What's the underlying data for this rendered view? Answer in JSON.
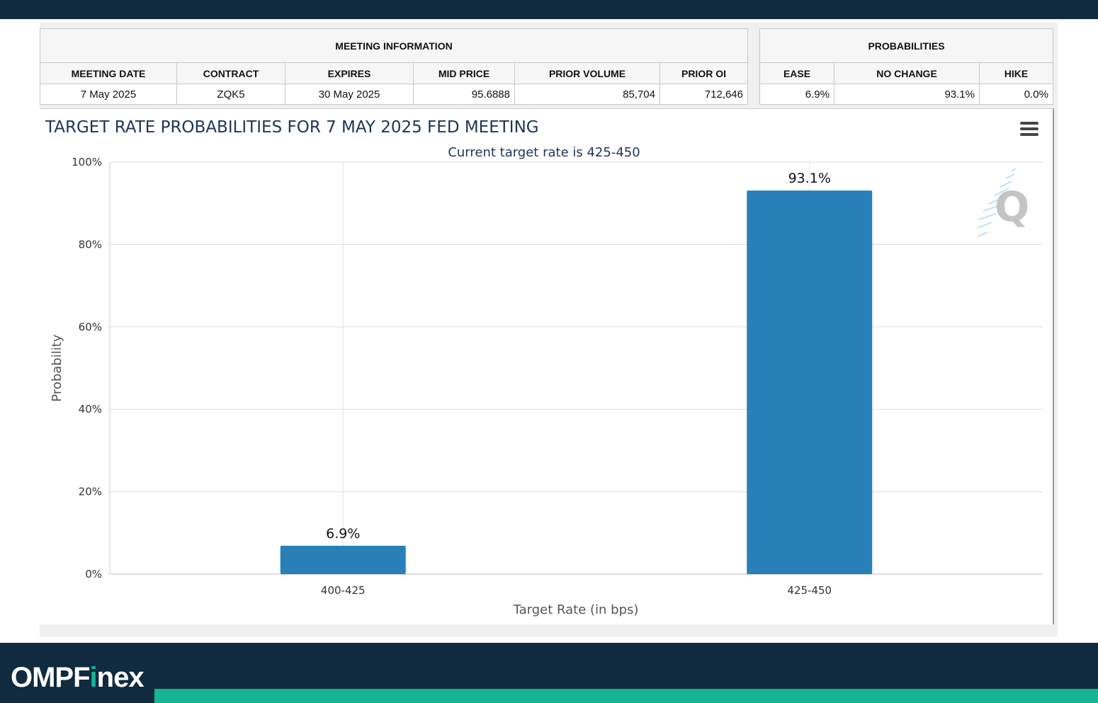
{
  "meeting_info": {
    "group_header": "MEETING INFORMATION",
    "columns": [
      "MEETING DATE",
      "CONTRACT",
      "EXPIRES",
      "MID PRICE",
      "PRIOR VOLUME",
      "PRIOR OI"
    ],
    "values": [
      "7 May 2025",
      "ZQK5",
      "30 May 2025",
      "95.6888",
      "85,704",
      "712,646"
    ]
  },
  "probabilities": {
    "group_header": "PROBABILITIES",
    "columns": [
      "EASE",
      "NO CHANGE",
      "HIKE"
    ],
    "values": [
      "6.9%",
      "93.1%",
      "0.0%"
    ]
  },
  "chart": {
    "menu_icon": "hamburger-menu-icon",
    "watermark_icon": "q-logo-icon"
  },
  "chart_data": {
    "type": "bar",
    "title": "TARGET RATE PROBABILITIES FOR 7 MAY 2025 FED MEETING",
    "subtitle": "Current target rate is 425-450",
    "categories": [
      "400-425",
      "425-450"
    ],
    "values": [
      6.9,
      93.1
    ],
    "data_labels": [
      "6.9%",
      "93.1%"
    ],
    "xlabel": "Target Rate (in bps)",
    "ylabel": "Probability",
    "ylim": [
      0,
      100
    ],
    "yticks": [
      "0%",
      "20%",
      "40%",
      "60%",
      "80%",
      "100%"
    ],
    "bar_color": "#2980b9",
    "grid": true,
    "legend": "none"
  },
  "footer": {
    "logo_text_before": "OMPF",
    "logo_text_accent": "i",
    "logo_text_after": "nex",
    "accent_color": "#16b596",
    "bar_color": "#102a3f"
  }
}
